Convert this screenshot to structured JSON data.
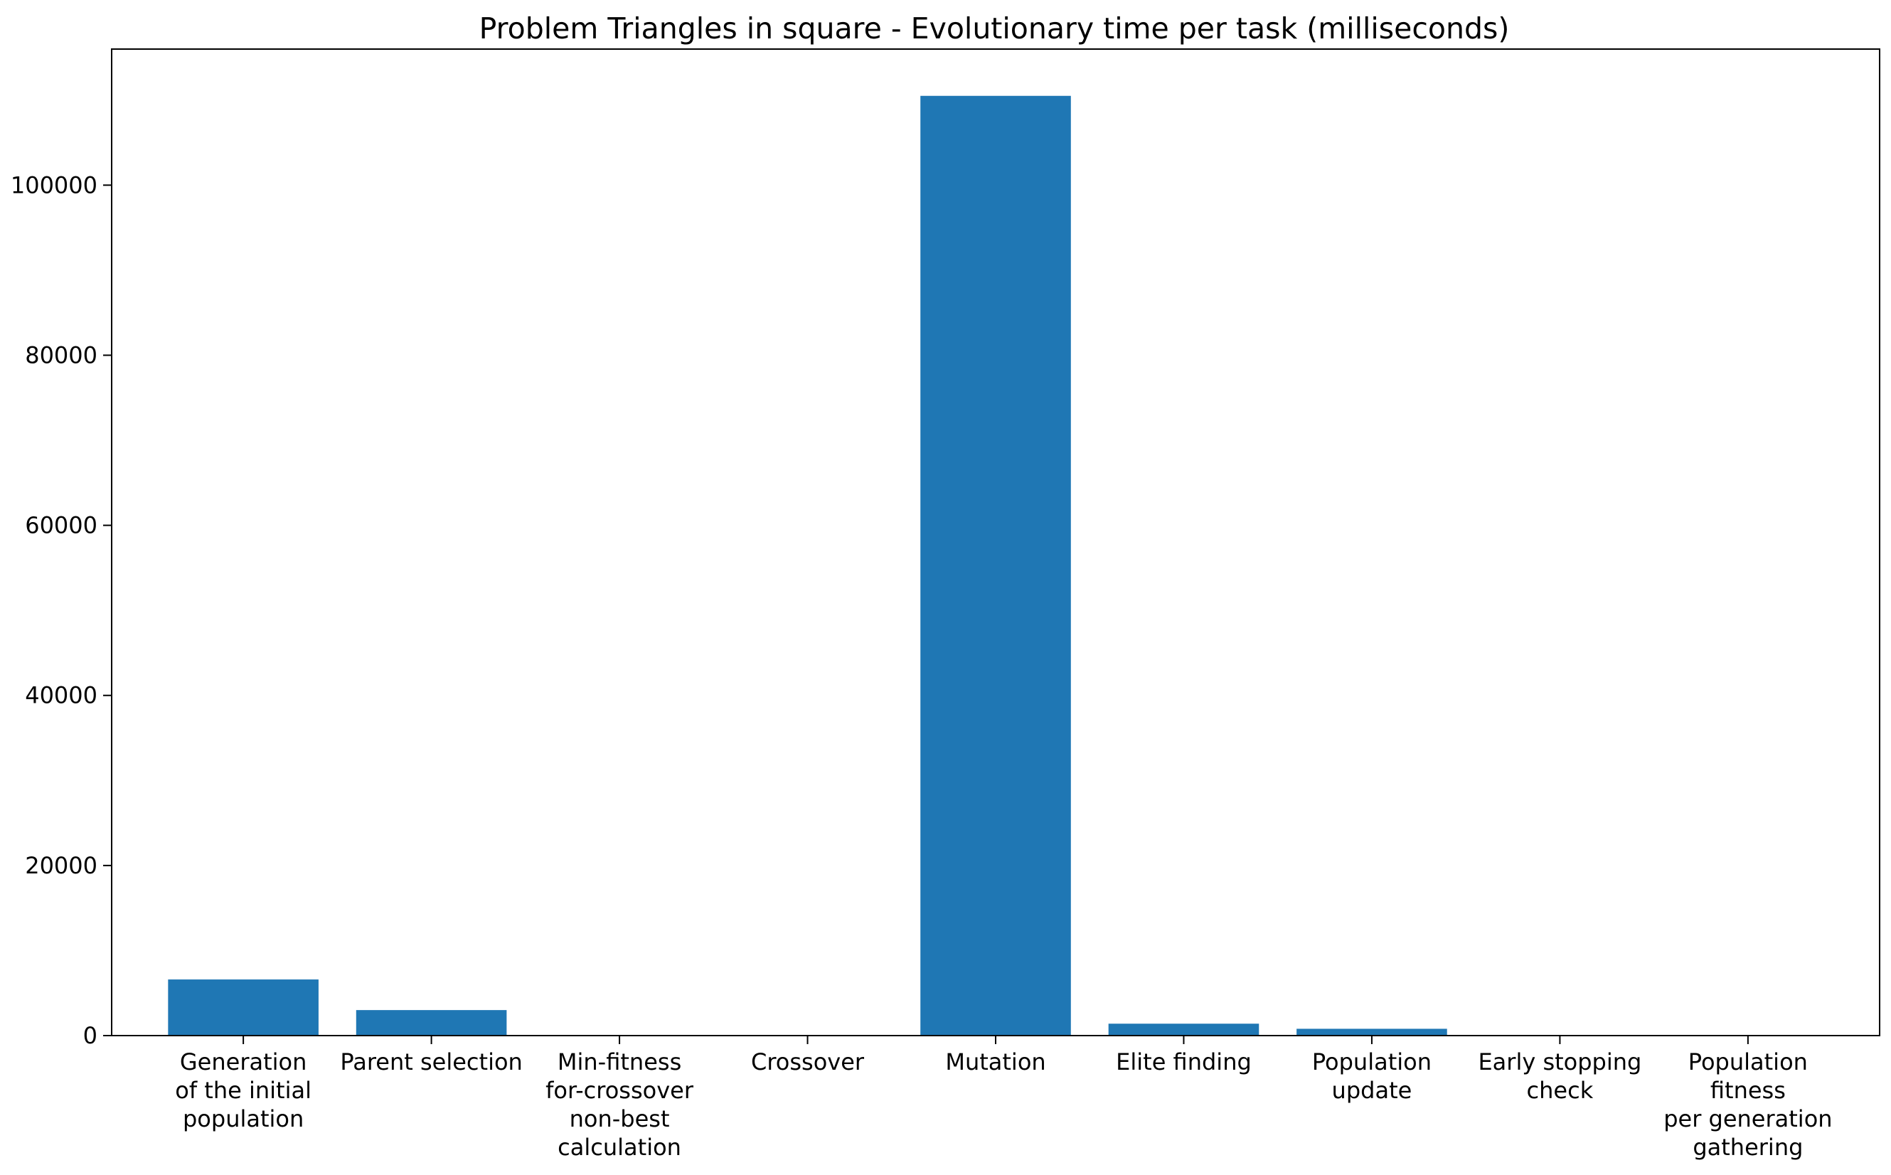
{
  "chart_data": {
    "type": "bar",
    "title": "Problem Triangles in square - Evolutionary time per task (milliseconds)",
    "xlabel": "",
    "ylabel": "",
    "categories": [
      [
        "Generation",
        "of the initial",
        "population"
      ],
      [
        "Parent selection"
      ],
      [
        "Min-fitness",
        "for-crossover",
        "non-best",
        "calculation"
      ],
      [
        "Crossover"
      ],
      [
        "Mutation"
      ],
      [
        "Elite finding"
      ],
      [
        "Population",
        "update"
      ],
      [
        "Early stopping",
        "check"
      ],
      [
        "Population",
        "fitness",
        "per generation",
        "gathering"
      ]
    ],
    "values": [
      6600,
      3000,
      50,
      30,
      110500,
      1400,
      800,
      20,
      30
    ],
    "ylim": [
      0,
      116000
    ],
    "yticks": [
      0,
      20000,
      40000,
      60000,
      80000,
      100000
    ],
    "ytick_labels": [
      "0",
      "20000",
      "40000",
      "60000",
      "80000",
      "100000"
    ],
    "bar_color": "#1f77b4",
    "grid": false,
    "legend": "none"
  }
}
